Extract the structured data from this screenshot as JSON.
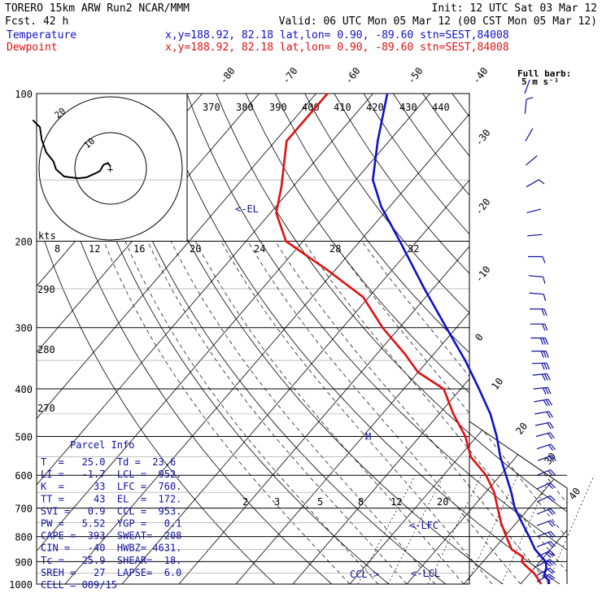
{
  "header": {
    "line1_left": "TORERO  15km ARW   Run2    NCAR/MMM",
    "line1_right": "Init: 12 UTC Sat 03 Mar 12",
    "line2_left": "Fcst.   42 h",
    "line2_right": "Valid: 06 UTC Mon 05 Mar 12 (00 CST Mon 05 Mar 12)",
    "temp_label": "Temperature",
    "temp_info": "x,y=188.92, 82.18   lat,lon=  0.90, -89.60  stn=SEST,84008",
    "dew_label": "Dewpoint",
    "dew_info": "x,y=188.92, 82.18   lat,lon=  0.90, -89.60  stn=SEST,84008",
    "full_barb": "Full barb:",
    "full_barb_units": "5 m s⁻¹"
  },
  "colors": {
    "temperature": "#1010c8",
    "dewpoint": "#e01010",
    "parcel": "#1010a0"
  },
  "chart_data": {
    "type": "line",
    "x_axis": "temperature (°C), skewed",
    "y_axis": "pressure (hPa), log scale",
    "pressure_ticks": [
      "100",
      "200",
      "300",
      "400",
      "500",
      "600",
      "700",
      "800",
      "900",
      "1000"
    ],
    "isotherm_labels": [
      "-80",
      "-70",
      "-60",
      "-50",
      "-40",
      "-30",
      "-20",
      "-10",
      "0",
      "10",
      "20",
      "30",
      "40"
    ],
    "theta_labels": [
      "370",
      "380",
      "390",
      "400",
      "410",
      "420",
      "430",
      "440"
    ],
    "theta_lower_labels": [
      "290",
      "280",
      "270"
    ],
    "mixing_ratio_labels": [
      "2",
      "3",
      "5",
      "8",
      "12",
      "20"
    ],
    "hodo_speed_labels": [
      "8",
      "12",
      "16",
      "20",
      "24",
      "28",
      "32"
    ],
    "hodo_ring_labels": [
      "20",
      "10"
    ],
    "hodo_units": "kts",
    "annotations": {
      "el": "<-EL",
      "lfc": "<-LFC",
      "lcl": "<-LCL",
      "ccl": "CCL->",
      "m": "M"
    },
    "series": [
      {
        "name": "Temperature",
        "color": "#1010c8",
        "points": [
          [
            1000,
            25.0
          ],
          [
            985,
            24.5
          ],
          [
            960,
            22.8
          ],
          [
            950,
            22.6
          ],
          [
            925,
            22.0
          ],
          [
            900,
            21.0
          ],
          [
            850,
            17.3
          ],
          [
            800,
            14.3
          ],
          [
            750,
            11.0
          ],
          [
            700,
            7.5
          ],
          [
            650,
            4.5
          ],
          [
            600,
            1.0
          ],
          [
            550,
            -2.8
          ],
          [
            500,
            -6.5
          ],
          [
            450,
            -11.0
          ],
          [
            400,
            -16.8
          ],
          [
            350,
            -23.5
          ],
          [
            300,
            -31.8
          ],
          [
            250,
            -41.5
          ],
          [
            200,
            -53.0
          ],
          [
            170,
            -61.5
          ],
          [
            150,
            -67.0
          ],
          [
            125,
            -72.0
          ],
          [
            100,
            -77.5
          ]
        ]
      },
      {
        "name": "Dewpoint",
        "color": "#e01010",
        "points": [
          [
            1000,
            23.6
          ],
          [
            980,
            22.5
          ],
          [
            950,
            20.7
          ],
          [
            925,
            18.7
          ],
          [
            900,
            16.8
          ],
          [
            880,
            16.3
          ],
          [
            850,
            13.2
          ],
          [
            800,
            10.3
          ],
          [
            750,
            7.3
          ],
          [
            700,
            4.5
          ],
          [
            650,
            1.5
          ],
          [
            600,
            -2.5
          ],
          [
            550,
            -8.0
          ],
          [
            500,
            -12.0
          ],
          [
            450,
            -17.5
          ],
          [
            400,
            -23.0
          ],
          [
            370,
            -30.0
          ],
          [
            340,
            -35.0
          ],
          [
            300,
            -43.0
          ],
          [
            260,
            -51.0
          ],
          [
            230,
            -61.0
          ],
          [
            200,
            -73.0
          ],
          [
            175,
            -79.0
          ],
          [
            155,
            -82.0
          ],
          [
            125,
            -88.0
          ],
          [
            100,
            -88.0
          ]
        ]
      }
    ],
    "winds": [
      {
        "p": 100,
        "spd": 4,
        "dir": 200
      },
      {
        "p": 110,
        "spd": 5,
        "dir": 185
      },
      {
        "p": 125,
        "spd": 3,
        "dir": 210
      },
      {
        "p": 140,
        "spd": 4,
        "dir": 230
      },
      {
        "p": 155,
        "spd": 5,
        "dir": 240
      },
      {
        "p": 175,
        "spd": 4,
        "dir": 255
      },
      {
        "p": 195,
        "spd": 3,
        "dir": 265
      },
      {
        "p": 215,
        "spd": 5,
        "dir": 270
      },
      {
        "p": 235,
        "spd": 6,
        "dir": 275
      },
      {
        "p": 255,
        "spd": 8,
        "dir": 275
      },
      {
        "p": 275,
        "spd": 12,
        "dir": 270
      },
      {
        "p": 295,
        "spd": 14,
        "dir": 270
      },
      {
        "p": 315,
        "spd": 15,
        "dir": 270
      },
      {
        "p": 335,
        "spd": 15,
        "dir": 270
      },
      {
        "p": 355,
        "spd": 16,
        "dir": 268
      },
      {
        "p": 375,
        "spd": 16,
        "dir": 265
      },
      {
        "p": 400,
        "spd": 15,
        "dir": 265
      },
      {
        "p": 425,
        "spd": 15,
        "dir": 260
      },
      {
        "p": 450,
        "spd": 14,
        "dir": 260
      },
      {
        "p": 475,
        "spd": 14,
        "dir": 258
      },
      {
        "p": 500,
        "spd": 13,
        "dir": 255
      },
      {
        "p": 530,
        "spd": 13,
        "dir": 252
      },
      {
        "p": 560,
        "spd": 12,
        "dir": 250
      },
      {
        "p": 600,
        "spd": 12,
        "dir": 248
      },
      {
        "p": 640,
        "spd": 11,
        "dir": 245
      },
      {
        "p": 680,
        "spd": 12,
        "dir": 245
      },
      {
        "p": 720,
        "spd": 12,
        "dir": 248
      },
      {
        "p": 760,
        "spd": 13,
        "dir": 250
      },
      {
        "p": 800,
        "spd": 14,
        "dir": 250
      },
      {
        "p": 840,
        "spd": 14,
        "dir": 248
      },
      {
        "p": 880,
        "spd": 15,
        "dir": 245
      },
      {
        "p": 920,
        "spd": 15,
        "dir": 242
      },
      {
        "p": 960,
        "spd": 14,
        "dir": 240
      },
      {
        "p": 990,
        "spd": 12,
        "dir": 238
      }
    ],
    "hodograph": [
      [
        0,
        0.2
      ],
      [
        -0.3,
        0.6
      ],
      [
        -0.8,
        0.4
      ],
      [
        -1.2,
        -0.3
      ],
      [
        -1.8,
        -0.6
      ],
      [
        -2.7,
        -1.0
      ],
      [
        -3.6,
        -1.1
      ],
      [
        -4.5,
        -1.0
      ],
      [
        -5.2,
        -0.9
      ],
      [
        -6.1,
        -0.1
      ],
      [
        -6.4,
        0.8
      ],
      [
        -7.2,
        1.8
      ],
      [
        -7.7,
        3.2
      ],
      [
        -7.9,
        4.6
      ],
      [
        -8.7,
        5.4
      ]
    ]
  },
  "parcel_info": {
    "title": "Parcel Info",
    "rows": [
      "T  =   25.0  Td =  23.6",
      "LI =   -1.7  LCL =  952.",
      "K  =     33  LFC =  760.",
      "TT =     43  EL  =  172.",
      "SVI =   0.9  CCL =  953.",
      "PW =   5.52  YGP =   0.1",
      "CAPE =  393  SWEAT=  208",
      "CIN =   -40  HWBZ= 4631.",
      "Tc =   25.9  SHEAR=  18.",
      "SREH =   27  LAPSE=  6.0",
      "CELL = 089/15"
    ]
  }
}
